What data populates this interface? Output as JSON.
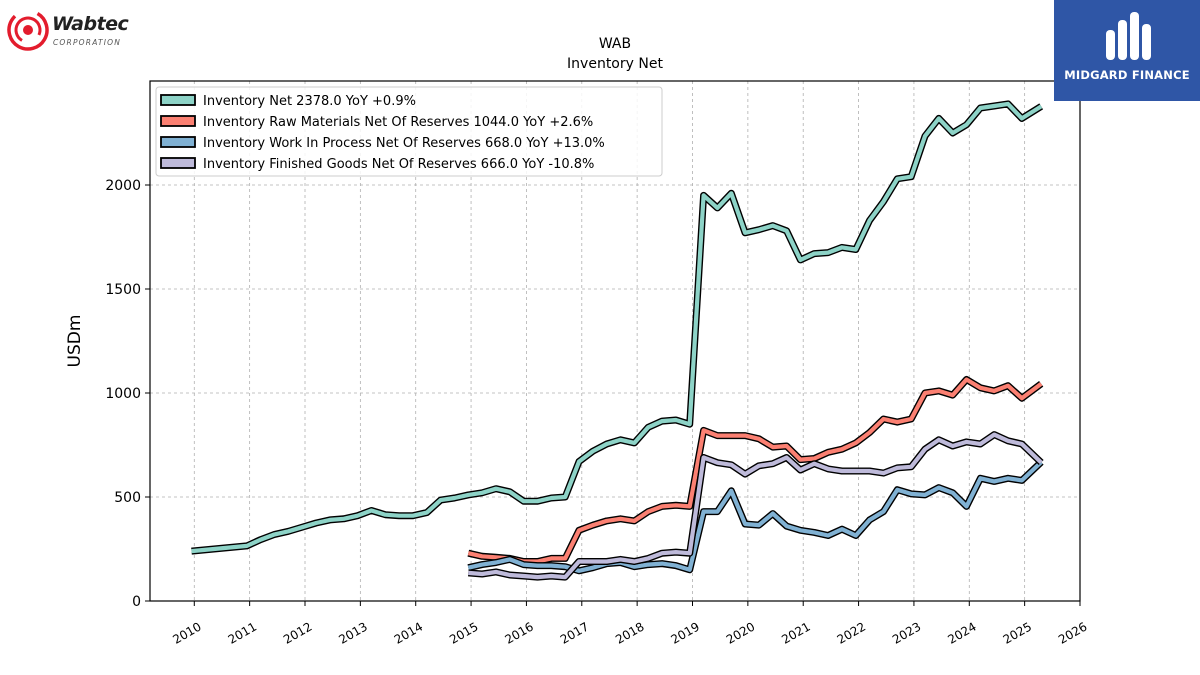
{
  "logos": {
    "left_name": "Wabtec",
    "left_sub": "CORPORATION",
    "right_name": "MIDGARD FINANCE"
  },
  "chart_data": {
    "type": "line",
    "title": "WAB",
    "subtitle": "Inventory Net",
    "xlabel": "",
    "ylabel": "USDm",
    "xlim": [
      2009.2,
      2026.0
    ],
    "ylim": [
      0,
      2500
    ],
    "x_ticks": [
      2010,
      2011,
      2012,
      2013,
      2014,
      2015,
      2016,
      2017,
      2018,
      2019,
      2020,
      2021,
      2022,
      2023,
      2024,
      2025,
      2026
    ],
    "y_ticks": [
      0,
      500,
      1000,
      1500,
      2000
    ],
    "grid": true,
    "legend_position": "top-left",
    "series": [
      {
        "name": "Inventory Net  2378.0 YoY +0.9%",
        "color": "#8dd3c7",
        "points": [
          [
            2009.95,
            240
          ],
          [
            2010.95,
            265
          ],
          [
            2011.2,
            295
          ],
          [
            2011.45,
            320
          ],
          [
            2011.7,
            335
          ],
          [
            2011.95,
            355
          ],
          [
            2012.2,
            375
          ],
          [
            2012.45,
            390
          ],
          [
            2012.7,
            395
          ],
          [
            2012.95,
            410
          ],
          [
            2013.2,
            435
          ],
          [
            2013.45,
            415
          ],
          [
            2013.7,
            410
          ],
          [
            2013.95,
            410
          ],
          [
            2014.2,
            425
          ],
          [
            2014.45,
            485
          ],
          [
            2014.7,
            495
          ],
          [
            2014.95,
            510
          ],
          [
            2015.2,
            520
          ],
          [
            2015.45,
            540
          ],
          [
            2015.7,
            525
          ],
          [
            2015.95,
            480
          ],
          [
            2016.2,
            480
          ],
          [
            2016.45,
            495
          ],
          [
            2016.7,
            500
          ],
          [
            2016.95,
            670
          ],
          [
            2017.2,
            720
          ],
          [
            2017.45,
            755
          ],
          [
            2017.7,
            775
          ],
          [
            2017.95,
            760
          ],
          [
            2018.2,
            835
          ],
          [
            2018.45,
            865
          ],
          [
            2018.7,
            870
          ],
          [
            2018.95,
            850
          ],
          [
            2019.2,
            1950
          ],
          [
            2019.45,
            1890
          ],
          [
            2019.7,
            1960
          ],
          [
            2019.95,
            1770
          ],
          [
            2020.2,
            1785
          ],
          [
            2020.45,
            1805
          ],
          [
            2020.7,
            1780
          ],
          [
            2020.95,
            1640
          ],
          [
            2021.2,
            1670
          ],
          [
            2021.45,
            1675
          ],
          [
            2021.7,
            1700
          ],
          [
            2021.95,
            1690
          ],
          [
            2022.2,
            1830
          ],
          [
            2022.45,
            1920
          ],
          [
            2022.7,
            2030
          ],
          [
            2022.95,
            2040
          ],
          [
            2023.2,
            2235
          ],
          [
            2023.45,
            2320
          ],
          [
            2023.7,
            2250
          ],
          [
            2023.95,
            2290
          ],
          [
            2024.2,
            2370
          ],
          [
            2024.45,
            2380
          ],
          [
            2024.7,
            2390
          ],
          [
            2024.95,
            2320
          ],
          [
            2025.3,
            2378
          ]
        ]
      },
      {
        "name": "Inventory Raw Materials Net Of Reserves  1044.0 YoY +2.6%",
        "color": "#fb8072",
        "points": [
          [
            2014.95,
            230
          ],
          [
            2015.2,
            215
          ],
          [
            2015.45,
            210
          ],
          [
            2015.7,
            205
          ],
          [
            2015.95,
            190
          ],
          [
            2016.2,
            190
          ],
          [
            2016.45,
            205
          ],
          [
            2016.7,
            205
          ],
          [
            2016.95,
            340
          ],
          [
            2017.2,
            365
          ],
          [
            2017.45,
            385
          ],
          [
            2017.7,
            395
          ],
          [
            2017.95,
            385
          ],
          [
            2018.2,
            430
          ],
          [
            2018.45,
            455
          ],
          [
            2018.7,
            460
          ],
          [
            2018.95,
            455
          ],
          [
            2019.2,
            820
          ],
          [
            2019.45,
            795
          ],
          [
            2019.7,
            795
          ],
          [
            2019.95,
            795
          ],
          [
            2020.2,
            780
          ],
          [
            2020.45,
            740
          ],
          [
            2020.7,
            745
          ],
          [
            2020.95,
            680
          ],
          [
            2021.2,
            685
          ],
          [
            2021.45,
            715
          ],
          [
            2021.7,
            730
          ],
          [
            2021.95,
            760
          ],
          [
            2022.2,
            810
          ],
          [
            2022.45,
            875
          ],
          [
            2022.7,
            860
          ],
          [
            2022.95,
            875
          ],
          [
            2023.2,
            1000
          ],
          [
            2023.45,
            1010
          ],
          [
            2023.7,
            990
          ],
          [
            2023.95,
            1065
          ],
          [
            2024.2,
            1025
          ],
          [
            2024.45,
            1010
          ],
          [
            2024.7,
            1035
          ],
          [
            2024.95,
            975
          ],
          [
            2025.3,
            1044
          ]
        ]
      },
      {
        "name": "Inventory Work In Process Net Of Reserves  668.0 YoY +13.0%",
        "color": "#80b1d3",
        "points": [
          [
            2014.95,
            160
          ],
          [
            2015.2,
            175
          ],
          [
            2015.45,
            185
          ],
          [
            2015.7,
            200
          ],
          [
            2015.95,
            175
          ],
          [
            2016.2,
            170
          ],
          [
            2016.45,
            170
          ],
          [
            2016.7,
            165
          ],
          [
            2016.95,
            145
          ],
          [
            2017.2,
            160
          ],
          [
            2017.45,
            180
          ],
          [
            2017.7,
            185
          ],
          [
            2017.95,
            165
          ],
          [
            2018.2,
            175
          ],
          [
            2018.45,
            180
          ],
          [
            2018.7,
            170
          ],
          [
            2018.95,
            150
          ],
          [
            2019.2,
            430
          ],
          [
            2019.45,
            430
          ],
          [
            2019.7,
            530
          ],
          [
            2019.95,
            370
          ],
          [
            2020.2,
            365
          ],
          [
            2020.45,
            420
          ],
          [
            2020.7,
            360
          ],
          [
            2020.95,
            340
          ],
          [
            2021.2,
            330
          ],
          [
            2021.45,
            315
          ],
          [
            2021.7,
            345
          ],
          [
            2021.95,
            315
          ],
          [
            2022.2,
            390
          ],
          [
            2022.45,
            430
          ],
          [
            2022.7,
            535
          ],
          [
            2022.95,
            515
          ],
          [
            2023.2,
            510
          ],
          [
            2023.45,
            545
          ],
          [
            2023.7,
            520
          ],
          [
            2023.95,
            455
          ],
          [
            2024.2,
            590
          ],
          [
            2024.45,
            575
          ],
          [
            2024.7,
            590
          ],
          [
            2024.95,
            580
          ],
          [
            2025.3,
            668
          ]
        ]
      },
      {
        "name": "Inventory Finished Goods Net Of Reserves  666.0 YoY -10.8%",
        "color": "#bebada",
        "points": [
          [
            2014.95,
            135
          ],
          [
            2015.2,
            130
          ],
          [
            2015.45,
            140
          ],
          [
            2015.7,
            125
          ],
          [
            2015.95,
            120
          ],
          [
            2016.2,
            115
          ],
          [
            2016.45,
            120
          ],
          [
            2016.7,
            115
          ],
          [
            2016.95,
            190
          ],
          [
            2017.2,
            190
          ],
          [
            2017.45,
            190
          ],
          [
            2017.7,
            200
          ],
          [
            2017.95,
            190
          ],
          [
            2018.2,
            205
          ],
          [
            2018.45,
            230
          ],
          [
            2018.7,
            235
          ],
          [
            2018.95,
            230
          ],
          [
            2019.2,
            690
          ],
          [
            2019.45,
            665
          ],
          [
            2019.7,
            655
          ],
          [
            2019.95,
            610
          ],
          [
            2020.2,
            650
          ],
          [
            2020.45,
            660
          ],
          [
            2020.7,
            690
          ],
          [
            2020.95,
            630
          ],
          [
            2021.2,
            660
          ],
          [
            2021.45,
            635
          ],
          [
            2021.7,
            625
          ],
          [
            2021.95,
            625
          ],
          [
            2022.2,
            625
          ],
          [
            2022.45,
            615
          ],
          [
            2022.7,
            640
          ],
          [
            2022.95,
            645
          ],
          [
            2023.2,
            730
          ],
          [
            2023.45,
            775
          ],
          [
            2023.7,
            745
          ],
          [
            2023.95,
            765
          ],
          [
            2024.2,
            755
          ],
          [
            2024.45,
            800
          ],
          [
            2024.7,
            770
          ],
          [
            2024.95,
            755
          ],
          [
            2025.3,
            666
          ]
        ]
      }
    ]
  }
}
